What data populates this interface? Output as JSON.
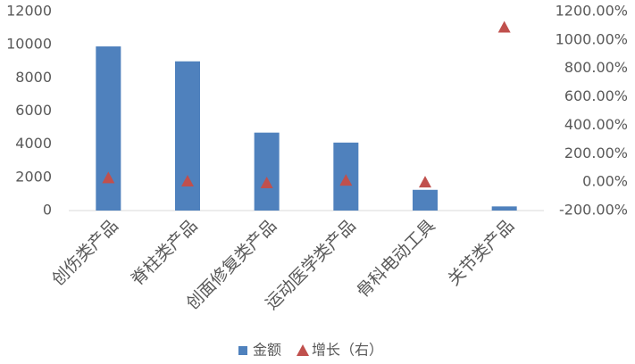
{
  "chart_data": {
    "type": "bar",
    "categories": [
      "创伤类产品",
      "脊柱类产品",
      "创面修复类产品",
      "运动医学类产品",
      "骨科电动工具",
      "关节类产品"
    ],
    "series": [
      {
        "name": "金额",
        "type": "bar",
        "color": "#4f81bd",
        "values": [
          9900,
          9000,
          4700,
          4100,
          1250,
          250
        ]
      },
      {
        "name": "增长（右）",
        "type": "scatter",
        "axis": "y2",
        "color": "#c0504d",
        "values": [
          30,
          7,
          -5,
          13,
          0,
          1090
        ]
      }
    ],
    "ylim": [
      0,
      12000
    ],
    "yticks": [
      0,
      2000,
      4000,
      6000,
      8000,
      10000,
      12000
    ],
    "y2lim": [
      -200,
      1200
    ],
    "y2ticks": [
      {
        "value": -200,
        "label": "-200.00%"
      },
      {
        "value": 0,
        "label": "0.00%"
      },
      {
        "value": 200,
        "label": "200.00%"
      },
      {
        "value": 400,
        "label": "400.00%"
      },
      {
        "value": 600,
        "label": "600.00%"
      },
      {
        "value": 800,
        "label": "800.00%"
      },
      {
        "value": 1000,
        "label": "1000.00%"
      },
      {
        "value": 1200,
        "label": "1200.00%"
      }
    ],
    "grid": false,
    "legend": "bottom"
  }
}
